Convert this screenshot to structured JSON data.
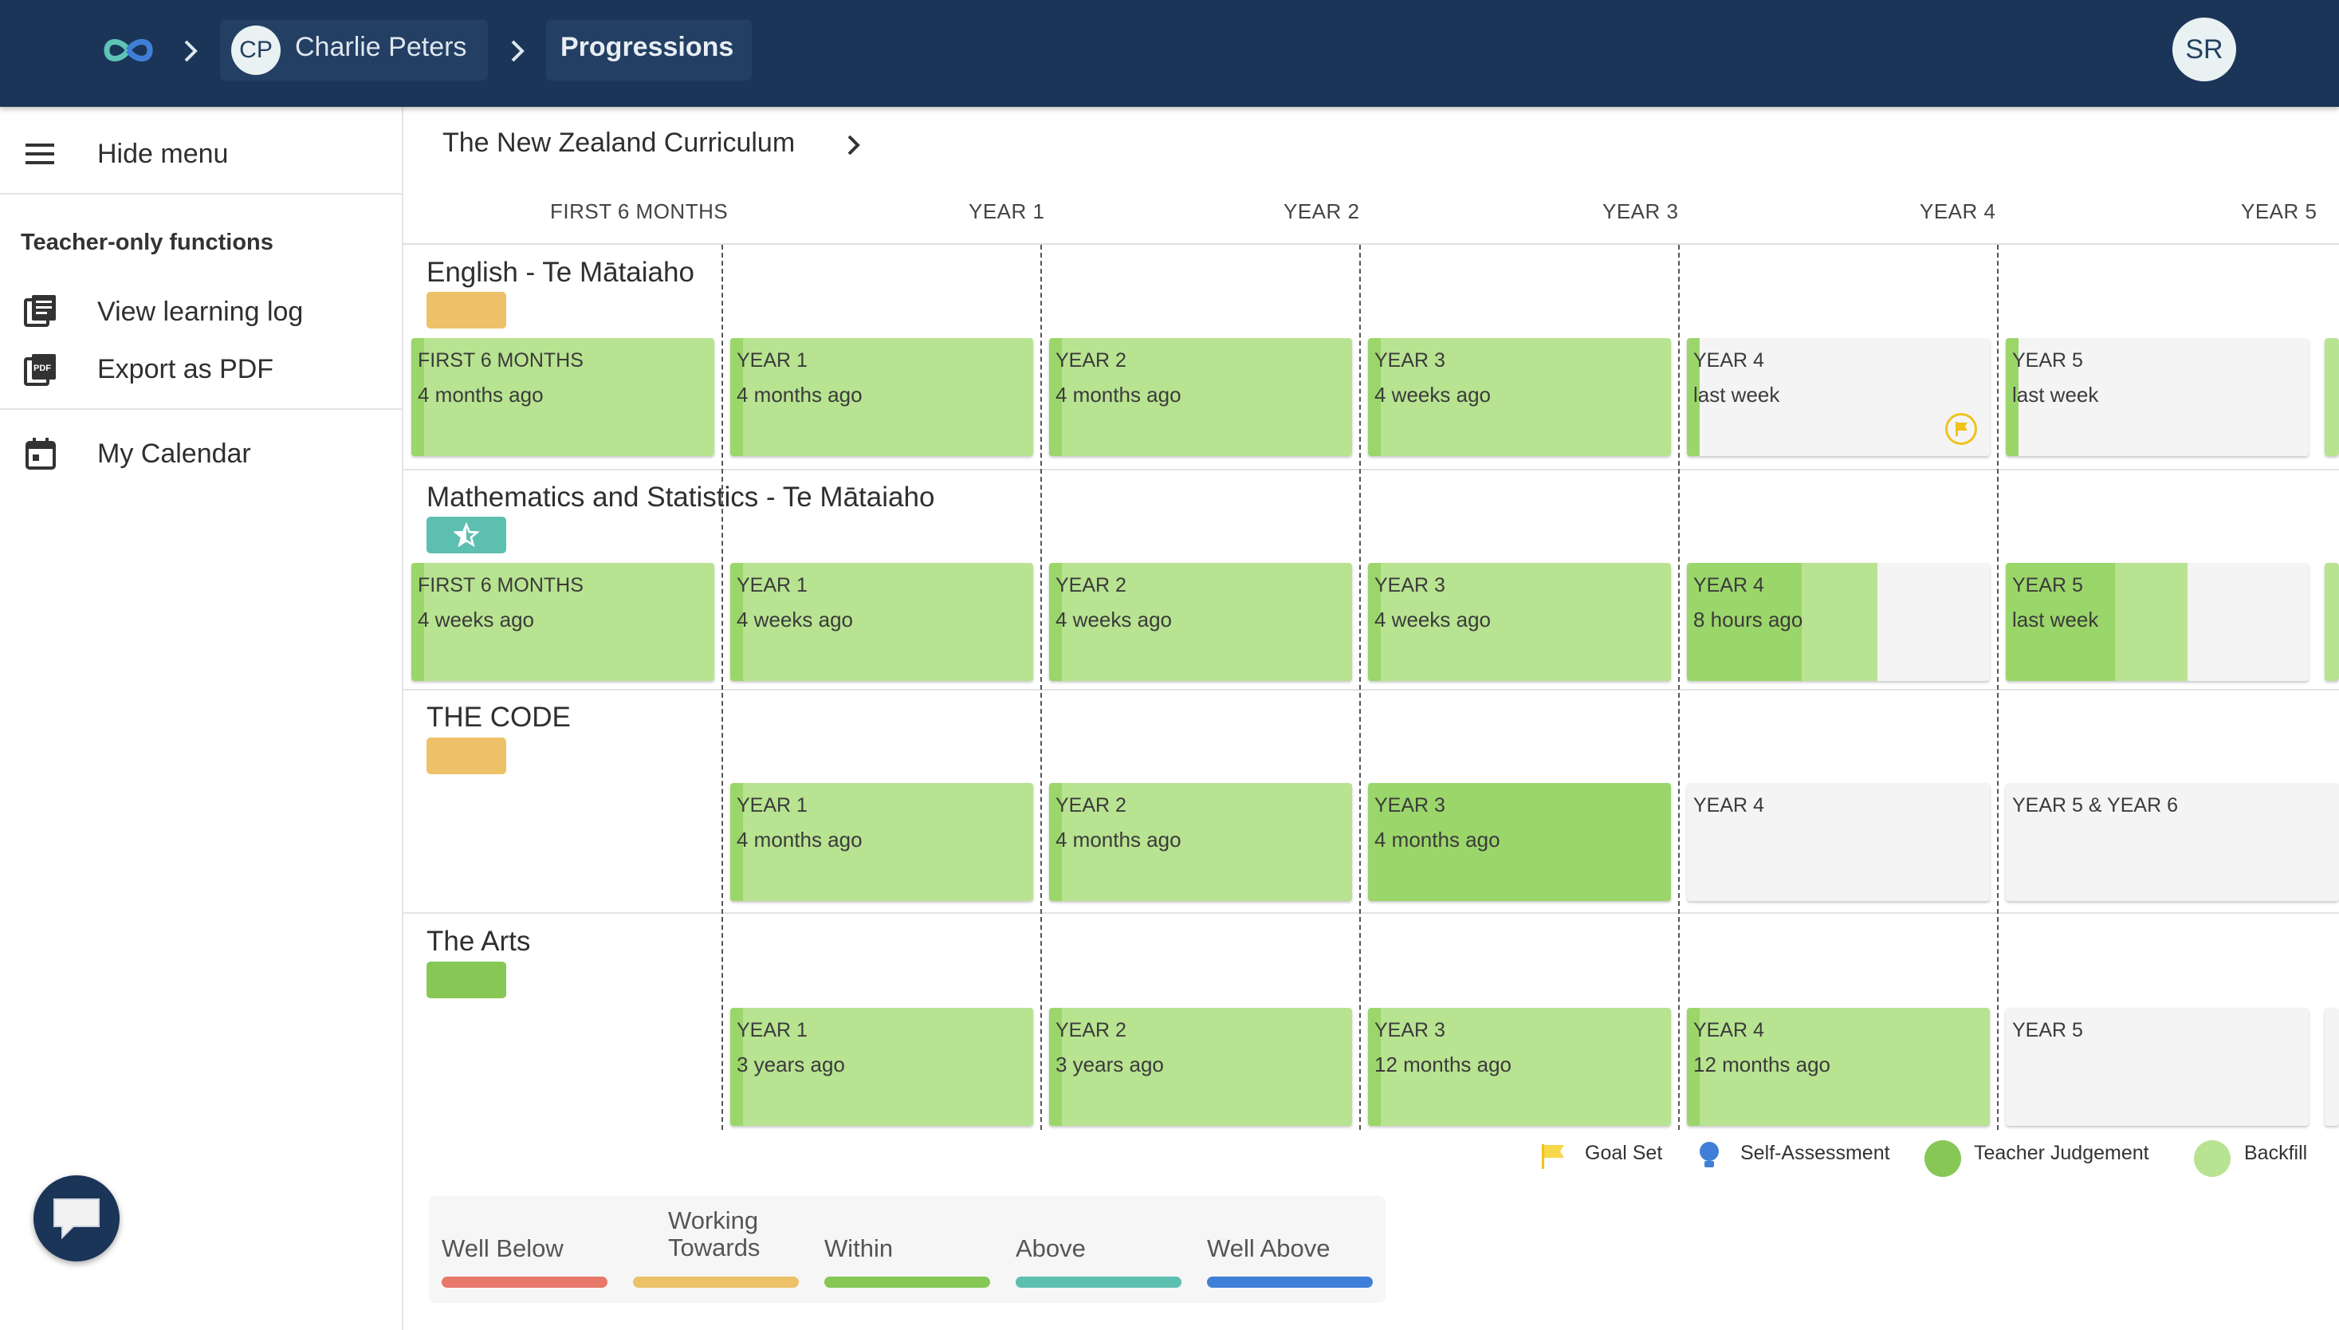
{
  "header": {
    "home_crumb_icon": "infinity-logo-icon",
    "student_initials": "CP",
    "student_name": "Charlie Peters",
    "current_page": "Progressions",
    "user_initials": "SR"
  },
  "sidebar": {
    "hide_menu": "Hide menu",
    "section_heading": "Teacher-only functions",
    "view_learning_log": "View learning log",
    "export_pdf": "Export as PDF",
    "my_calendar": "My Calendar"
  },
  "main": {
    "curriculum": "The New Zealand Curriculum",
    "columns": [
      "FIRST 6 MONTHS",
      "YEAR 1",
      "YEAR 2",
      "YEAR 3",
      "YEAR 4",
      "YEAR 5"
    ],
    "subjects": [
      {
        "title": "English - Te Mātaiaho",
        "badge_color": "#ecc167",
        "cards": [
          {
            "label": "FIRST 6 MONTHS",
            "time": "4 months ago",
            "fill": 1.0
          },
          {
            "label": "YEAR 1",
            "time": "4 months ago",
            "fill": 1.0
          },
          {
            "label": "YEAR 2",
            "time": "4 months ago",
            "fill": 1.0
          },
          {
            "label": "YEAR 3",
            "time": "4 weeks ago",
            "fill": 1.0
          },
          {
            "label": "YEAR 4",
            "time": "last week",
            "fill": 0.0,
            "goal_set": true
          },
          {
            "label": "YEAR 5",
            "time": "last week",
            "fill": 0.0
          }
        ]
      },
      {
        "title": "Mathematics and Statistics - Te Mātaiaho",
        "badge_color": "#5dbfb0",
        "badge_icon": "star-icon",
        "cards": [
          {
            "label": "FIRST 6 MONTHS",
            "time": "4 weeks ago",
            "fill": 1.0
          },
          {
            "label": "YEAR 1",
            "time": "4 weeks ago",
            "fill": 1.0
          },
          {
            "label": "YEAR 2",
            "time": "4 weeks ago",
            "fill": 1.0
          },
          {
            "label": "YEAR 3",
            "time": "4 weeks ago",
            "fill": 1.0
          },
          {
            "label": "YEAR 4",
            "time": "8 hours ago",
            "fill": 0.63
          },
          {
            "label": "YEAR 5",
            "time": "last week",
            "fill": 0.6
          }
        ]
      },
      {
        "title": "THE CODE",
        "badge_color": "#ecc167",
        "cards": [
          {
            "label": "YEAR 1",
            "time": "4 months ago",
            "fill": 1.0
          },
          {
            "label": "YEAR 2",
            "time": "4 months ago",
            "fill": 1.0
          },
          {
            "label": "YEAR 3",
            "time": "4 months ago",
            "fill": 1.0
          },
          {
            "label": "YEAR 4",
            "time": "",
            "fill": 0.0
          },
          {
            "label": "YEAR 5 & YEAR 6",
            "time": "",
            "fill": 0.0
          }
        ]
      },
      {
        "title": "The Arts",
        "badge_color": "#86c756",
        "cards": [
          {
            "label": "YEAR 1",
            "time": "3 years ago",
            "fill": 1.0
          },
          {
            "label": "YEAR 2",
            "time": "3 years ago",
            "fill": 1.0
          },
          {
            "label": "YEAR 3",
            "time": "12 months ago",
            "fill": 1.0
          },
          {
            "label": "YEAR 4",
            "time": "12 months ago",
            "fill": 1.0
          },
          {
            "label": "YEAR 5",
            "time": "",
            "fill": 0.0
          }
        ]
      }
    ],
    "legend": {
      "goal_set": "Goal Set",
      "self_assessment": "Self-Assessment",
      "teacher_judgement": "Teacher Judgement",
      "backfill": "Backfill"
    },
    "achievement": [
      {
        "label": "Well Below",
        "color": "#e7786a"
      },
      {
        "label": "Working Towards",
        "color": "#ecc167"
      },
      {
        "label": "Within",
        "color": "#86c756"
      },
      {
        "label": "Above",
        "color": "#5dbfb0"
      },
      {
        "label": "Well Above",
        "color": "#3f7fd8"
      }
    ]
  }
}
